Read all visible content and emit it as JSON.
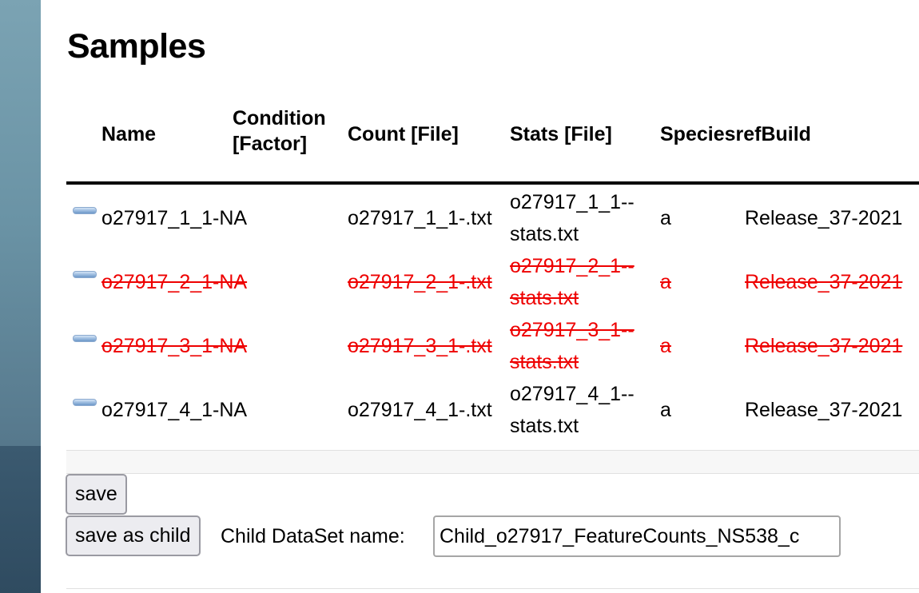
{
  "page": {
    "title": "Samples"
  },
  "table": {
    "headers": {
      "name": "Name",
      "condition_line1": "Condition",
      "condition_line2": "[Factor]",
      "count": "Count [File]",
      "stats": "Stats [File]",
      "species_refbuild": "SpeciesrefBuild"
    },
    "rows": [
      {
        "name": "o27917_1_1-NA",
        "count": "o27917_1_1-.txt",
        "stats_line1": "o27917_1_1--",
        "stats_line2": "stats.txt",
        "species": "a",
        "refbuild": "Release_37-2021",
        "deleted": false
      },
      {
        "name": "o27917_2_1-NA",
        "count": "o27917_2_1-.txt",
        "stats_line1": "o27917_2_1--",
        "stats_line2": "stats.txt",
        "species": "a",
        "refbuild": "Release_37-2021",
        "deleted": true
      },
      {
        "name": "o27917_3_1-NA",
        "count": "o27917_3_1-.txt",
        "stats_line1": "o27917_3_1--",
        "stats_line2": "stats.txt",
        "species": "a",
        "refbuild": "Release_37-2021",
        "deleted": true
      },
      {
        "name": "o27917_4_1-NA",
        "count": "o27917_4_1-.txt",
        "stats_line1": "o27917_4_1--",
        "stats_line2": "stats.txt",
        "species": "a",
        "refbuild": "Release_37-2021",
        "deleted": false
      }
    ],
    "row_icon": "minus-icon",
    "deleted_color": "#ee0000"
  },
  "actions": {
    "save_label": "save",
    "save_as_child_label": "save as child",
    "child_name_label": "Child DataSet name:",
    "child_name_value": "Child_o27917_FeatureCounts_NS538_c"
  }
}
